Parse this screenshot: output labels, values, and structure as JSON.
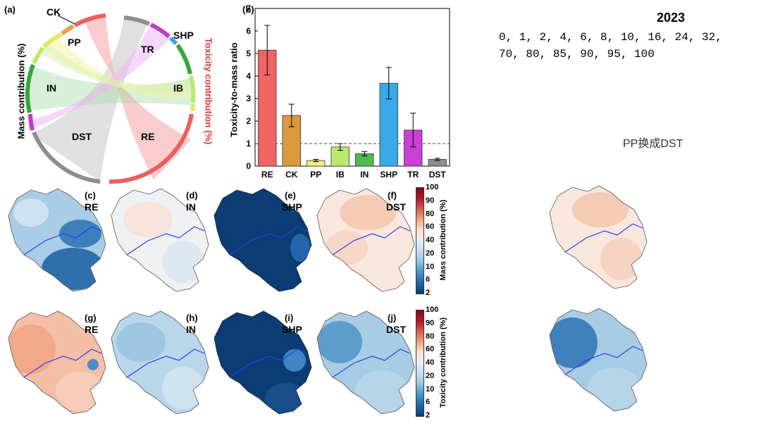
{
  "panel_a": {
    "label": "(a)",
    "left_axis": "Mass contribution (%)",
    "right_axis": "Toxicity contribution (%)",
    "sectors": [
      "CK",
      "PP",
      "IN",
      "DST",
      "TR",
      "SHP",
      "IB",
      "RE"
    ]
  },
  "chart_data": {
    "type": "bar",
    "label": "(b)",
    "title": "",
    "xlabel": "",
    "ylabel": "Toxicity-to-mass ratio",
    "categories": [
      "RE",
      "CK",
      "PP",
      "IB",
      "IN",
      "SHP",
      "TR",
      "DST"
    ],
    "values": [
      5.15,
      2.25,
      0.25,
      0.85,
      0.55,
      3.68,
      1.6,
      0.3
    ],
    "errors": [
      1.1,
      0.5,
      0.05,
      0.15,
      0.1,
      0.7,
      0.75,
      0.05
    ],
    "colors": [
      "#f16464",
      "#d99b3e",
      "#f2ee78",
      "#b9ea6e",
      "#4fbb4f",
      "#39a9ea",
      "#cc3fd6",
      "#8e8e8e"
    ],
    "ylim": [
      0,
      7
    ],
    "yticks": [
      "0",
      "1",
      "2",
      "3",
      "4",
      "5",
      "6",
      "7"
    ],
    "reference_line": 1
  },
  "maps": {
    "mass_row": [
      {
        "letter": "(c)",
        "name": "RE"
      },
      {
        "letter": "(d)",
        "name": "IN"
      },
      {
        "letter": "(e)",
        "name": "SHP"
      },
      {
        "letter": "(f)",
        "name": "DST"
      }
    ],
    "toxicity_row": [
      {
        "letter": "(g)",
        "name": "RE"
      },
      {
        "letter": "(h)",
        "name": "IN"
      },
      {
        "letter": "(i)",
        "name": "SHP"
      },
      {
        "letter": "(j)",
        "name": "DST"
      }
    ],
    "colorbar_ticks": [
      "100",
      "90",
      "80",
      "60",
      "40",
      "20",
      "10",
      "6",
      "2"
    ],
    "colorbar_colors": [
      "#7f0a1a",
      "#b2182b",
      "#d6604d",
      "#f4a582",
      "#fbe3d6",
      "#e8eff6",
      "#c5dcee",
      "#92c5de",
      "#4393c3",
      "#2166ac",
      "#0b3c73"
    ],
    "mass_colorbar_label": "Mass contribution (%)",
    "toxicity_colorbar_label": "Toxicity contribution (%)"
  },
  "notes": {
    "year": "2023",
    "levels_line1": "0, 1, 2, 4, 6, 8, 10, 16, 24, 32,",
    "levels_line2": "70, 80, 85, 90, 95, 100",
    "replace_note": "PP换成DST"
  }
}
